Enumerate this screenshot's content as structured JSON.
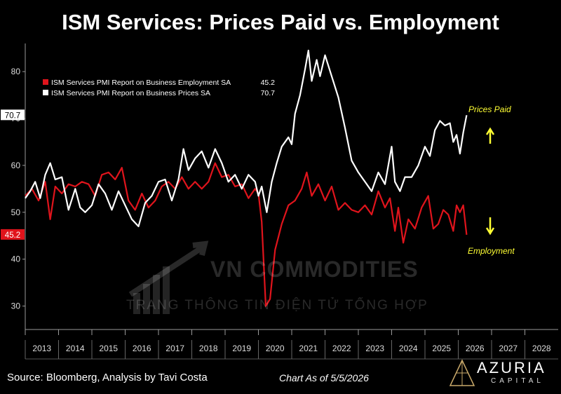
{
  "title": "ISM Services: Prices Paid vs. Employment",
  "footer": {
    "source": "Source: Bloomberg, Analysis by Tavi Costa",
    "date": "Chart As of 5/5/2026"
  },
  "logo": {
    "name": "AZURIA",
    "sub": "CAPITAL"
  },
  "watermark": {
    "line1": "VN COMMODITIES",
    "line2": "TRANG THÔNG TIN ĐIỆN TỬ TỔNG HỢP"
  },
  "annotations": {
    "prices": "Prices Paid",
    "employment": "Employment"
  },
  "colors": {
    "employment": "#e0141c",
    "prices": "#ffffff",
    "annotation": "#ffff33",
    "axis": "#9a9a9a"
  },
  "chart_data": {
    "type": "line",
    "ylim": [
      25,
      86
    ],
    "xlim": [
      2013,
      2029
    ],
    "y_ticks": [
      30,
      40,
      50,
      60,
      70,
      80
    ],
    "x_tick_labels": [
      "2013",
      "2014",
      "2015",
      "2016",
      "2017",
      "2018",
      "2019",
      "2020",
      "2021",
      "2022",
      "2023",
      "2024",
      "2025",
      "2026",
      "2027",
      "2028"
    ],
    "legend_position": "top-left",
    "last_value_labels": [
      {
        "series": "prices",
        "label": "70.7",
        "value": 70.7
      },
      {
        "series": "employment",
        "label": "45.2",
        "value": 45.2
      }
    ],
    "series": [
      {
        "key": "employment",
        "name": "ISM Services PMI Report on Business Employment SA",
        "last": "45.2",
        "points": [
          [
            2013.0,
            53.5
          ],
          [
            2013.2,
            55.0
          ],
          [
            2013.4,
            52.5
          ],
          [
            2013.6,
            56.5
          ],
          [
            2013.75,
            48.5
          ],
          [
            2013.9,
            55.5
          ],
          [
            2014.1,
            54.0
          ],
          [
            2014.3,
            56.0
          ],
          [
            2014.5,
            55.5
          ],
          [
            2014.7,
            56.5
          ],
          [
            2014.9,
            56.0
          ],
          [
            2015.1,
            53.5
          ],
          [
            2015.3,
            58.0
          ],
          [
            2015.5,
            58.5
          ],
          [
            2015.7,
            57.0
          ],
          [
            2015.9,
            59.5
          ],
          [
            2016.1,
            52.5
          ],
          [
            2016.3,
            50.5
          ],
          [
            2016.5,
            54.0
          ],
          [
            2016.7,
            51.0
          ],
          [
            2016.9,
            52.5
          ],
          [
            2017.1,
            55.5
          ],
          [
            2017.3,
            56.5
          ],
          [
            2017.5,
            55.0
          ],
          [
            2017.7,
            57.5
          ],
          [
            2017.9,
            55.0
          ],
          [
            2018.1,
            56.5
          ],
          [
            2018.3,
            55.0
          ],
          [
            2018.5,
            56.5
          ],
          [
            2018.7,
            60.5
          ],
          [
            2018.9,
            57.5
          ],
          [
            2019.1,
            58.0
          ],
          [
            2019.3,
            55.5
          ],
          [
            2019.5,
            56.0
          ],
          [
            2019.7,
            53.0
          ],
          [
            2019.9,
            55.0
          ],
          [
            2020.0,
            54.0
          ],
          [
            2020.1,
            48.0
          ],
          [
            2020.22,
            30.0
          ],
          [
            2020.35,
            31.5
          ],
          [
            2020.5,
            42.0
          ],
          [
            2020.7,
            47.5
          ],
          [
            2020.9,
            51.5
          ],
          [
            2021.1,
            52.5
          ],
          [
            2021.3,
            55.0
          ],
          [
            2021.45,
            58.5
          ],
          [
            2021.6,
            53.5
          ],
          [
            2021.8,
            56.0
          ],
          [
            2022.0,
            52.5
          ],
          [
            2022.2,
            55.5
          ],
          [
            2022.4,
            50.5
          ],
          [
            2022.6,
            52.0
          ],
          [
            2022.8,
            50.5
          ],
          [
            2023.0,
            50.0
          ],
          [
            2023.2,
            51.5
          ],
          [
            2023.4,
            49.5
          ],
          [
            2023.6,
            54.5
          ],
          [
            2023.8,
            51.0
          ],
          [
            2023.95,
            53.0
          ],
          [
            2024.1,
            46.0
          ],
          [
            2024.2,
            51.0
          ],
          [
            2024.35,
            43.5
          ],
          [
            2024.5,
            48.5
          ],
          [
            2024.7,
            46.5
          ],
          [
            2024.9,
            51.0
          ],
          [
            2025.1,
            53.5
          ],
          [
            2025.25,
            46.5
          ],
          [
            2025.4,
            47.5
          ],
          [
            2025.55,
            50.5
          ],
          [
            2025.7,
            49.5
          ],
          [
            2025.85,
            46.0
          ],
          [
            2025.95,
            51.5
          ],
          [
            2026.05,
            50.0
          ],
          [
            2026.15,
            51.5
          ],
          [
            2026.25,
            45.2
          ]
        ]
      },
      {
        "key": "prices",
        "name": "ISM Services PMI Report on Business Prices SA",
        "last": "70.7",
        "points": [
          [
            2013.0,
            53.0
          ],
          [
            2013.15,
            54.5
          ],
          [
            2013.3,
            56.5
          ],
          [
            2013.45,
            53.0
          ],
          [
            2013.6,
            58.0
          ],
          [
            2013.75,
            60.5
          ],
          [
            2013.9,
            57.0
          ],
          [
            2014.1,
            57.5
          ],
          [
            2014.3,
            50.5
          ],
          [
            2014.5,
            55.0
          ],
          [
            2014.65,
            51.0
          ],
          [
            2014.8,
            50.0
          ],
          [
            2015.0,
            51.5
          ],
          [
            2015.2,
            56.0
          ],
          [
            2015.4,
            54.0
          ],
          [
            2015.6,
            50.5
          ],
          [
            2015.8,
            54.5
          ],
          [
            2016.0,
            51.5
          ],
          [
            2016.2,
            48.5
          ],
          [
            2016.4,
            47.0
          ],
          [
            2016.6,
            52.0
          ],
          [
            2016.8,
            53.5
          ],
          [
            2017.0,
            56.5
          ],
          [
            2017.2,
            57.0
          ],
          [
            2017.4,
            52.5
          ],
          [
            2017.6,
            57.0
          ],
          [
            2017.75,
            63.5
          ],
          [
            2017.9,
            59.0
          ],
          [
            2018.1,
            61.5
          ],
          [
            2018.3,
            63.0
          ],
          [
            2018.5,
            59.5
          ],
          [
            2018.7,
            63.5
          ],
          [
            2018.9,
            60.5
          ],
          [
            2019.1,
            56.5
          ],
          [
            2019.3,
            58.0
          ],
          [
            2019.5,
            55.0
          ],
          [
            2019.7,
            58.0
          ],
          [
            2019.9,
            56.5
          ],
          [
            2020.0,
            53.5
          ],
          [
            2020.1,
            55.5
          ],
          [
            2020.25,
            50.0
          ],
          [
            2020.4,
            56.5
          ],
          [
            2020.55,
            60.5
          ],
          [
            2020.7,
            64.0
          ],
          [
            2020.9,
            66.0
          ],
          [
            2021.0,
            64.5
          ],
          [
            2021.1,
            71.0
          ],
          [
            2021.25,
            75.0
          ],
          [
            2021.4,
            80.5
          ],
          [
            2021.5,
            84.5
          ],
          [
            2021.6,
            78.0
          ],
          [
            2021.75,
            82.5
          ],
          [
            2021.85,
            79.0
          ],
          [
            2022.0,
            83.5
          ],
          [
            2022.2,
            79.0
          ],
          [
            2022.4,
            74.5
          ],
          [
            2022.6,
            68.0
          ],
          [
            2022.8,
            61.0
          ],
          [
            2023.0,
            58.5
          ],
          [
            2023.2,
            56.5
          ],
          [
            2023.4,
            54.5
          ],
          [
            2023.6,
            58.5
          ],
          [
            2023.8,
            56.0
          ],
          [
            2024.0,
            64.0
          ],
          [
            2024.1,
            56.5
          ],
          [
            2024.25,
            54.5
          ],
          [
            2024.4,
            57.5
          ],
          [
            2024.6,
            57.5
          ],
          [
            2024.8,
            60.0
          ],
          [
            2025.0,
            64.0
          ],
          [
            2025.15,
            62.0
          ],
          [
            2025.3,
            67.5
          ],
          [
            2025.45,
            69.5
          ],
          [
            2025.6,
            68.5
          ],
          [
            2025.75,
            69.0
          ],
          [
            2025.85,
            65.0
          ],
          [
            2025.95,
            66.5
          ],
          [
            2026.05,
            62.5
          ],
          [
            2026.15,
            67.0
          ],
          [
            2026.25,
            70.7
          ]
        ]
      }
    ]
  }
}
